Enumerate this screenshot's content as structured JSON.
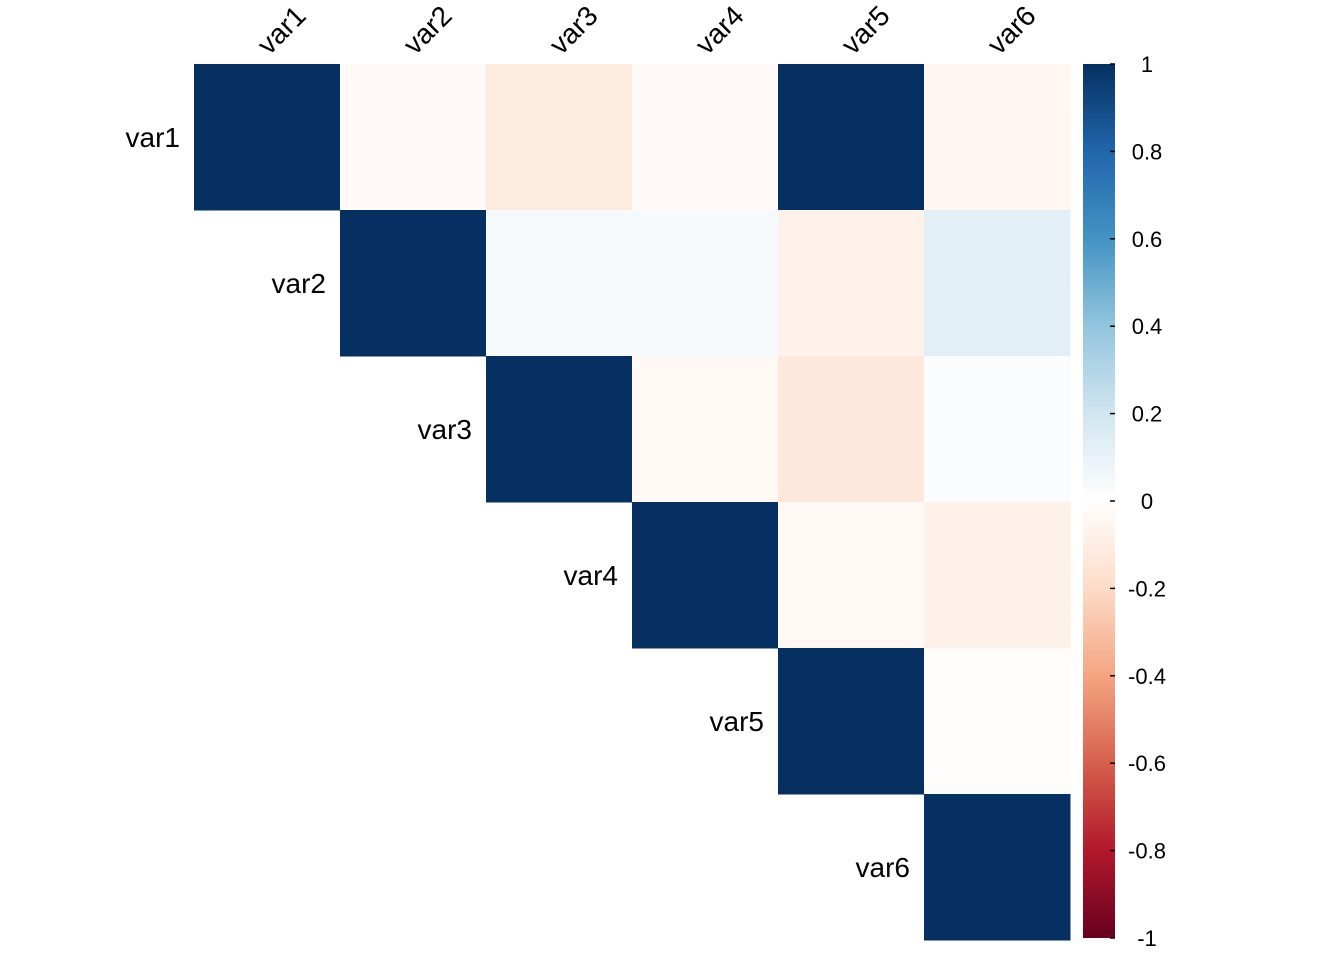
{
  "chart_data": {
    "type": "heatmap",
    "layout": "upper-triangle",
    "variables": [
      "var1",
      "var2",
      "var3",
      "var4",
      "var5",
      "var6"
    ],
    "matrix": [
      [
        1.0,
        -0.03,
        -0.11,
        -0.03,
        1.0,
        -0.05
      ],
      [
        null,
        1.0,
        0.04,
        0.04,
        -0.07,
        0.12
      ],
      [
        null,
        null,
        1.0,
        -0.04,
        -0.13,
        0.02
      ],
      [
        null,
        null,
        null,
        1.0,
        -0.04,
        -0.08
      ],
      [
        null,
        null,
        null,
        null,
        1.0,
        -0.01
      ],
      [
        null,
        null,
        null,
        null,
        null,
        1.0
      ]
    ],
    "colorbar": {
      "range": [
        -1,
        1
      ],
      "ticks": [
        "1",
        "0.8",
        "0.6",
        "0.4",
        "0.2",
        "0",
        "-0.2",
        "-0.4",
        "-0.6",
        "-0.8",
        "-1"
      ],
      "tick_values": [
        1,
        0.8,
        0.6,
        0.4,
        0.2,
        0,
        -0.2,
        -0.4,
        -0.6,
        -0.8,
        -1
      ],
      "placement": "right",
      "stops": [
        {
          "v": -1.0,
          "color": "#67001F"
        },
        {
          "v": -0.8,
          "color": "#B2182B"
        },
        {
          "v": -0.6,
          "color": "#D6604D"
        },
        {
          "v": -0.4,
          "color": "#F4A582"
        },
        {
          "v": -0.2,
          "color": "#FDDBC7"
        },
        {
          "v": 0.0,
          "color": "#FFFFFF"
        },
        {
          "v": 0.2,
          "color": "#D1E5F0"
        },
        {
          "v": 0.4,
          "color": "#92C5DE"
        },
        {
          "v": 0.6,
          "color": "#4393C3"
        },
        {
          "v": 0.8,
          "color": "#2166AC"
        },
        {
          "v": 1.0,
          "color": "#053061"
        }
      ]
    }
  }
}
